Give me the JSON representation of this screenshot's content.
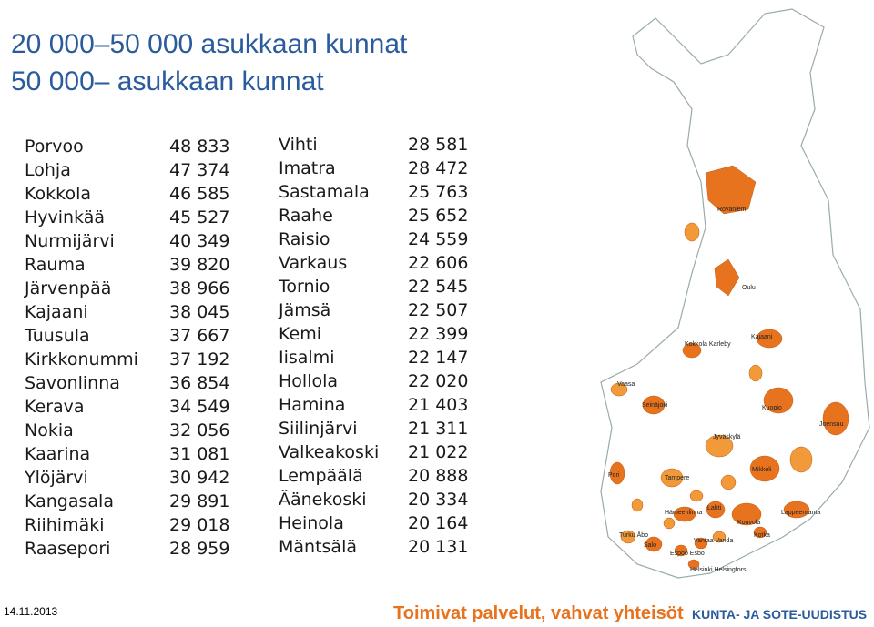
{
  "header": {
    "title_lines": [
      "20 000–50 000 asukkaan kunnat",
      "50 000– asukkaan kunnat"
    ]
  },
  "tables": [
    {
      "rows": [
        [
          "Porvoo",
          "48 833"
        ],
        [
          "Lohja",
          "47 374"
        ],
        [
          "Kokkola",
          "46 585"
        ],
        [
          "Hyvinkää",
          "45 527"
        ],
        [
          "Nurmijärvi",
          "40 349"
        ],
        [
          "Rauma",
          "39 820"
        ],
        [
          "Järvenpää",
          "38 966"
        ],
        [
          "Kajaani",
          "38 045"
        ],
        [
          "Tuusula",
          "37 667"
        ],
        [
          "Kirkkonummi",
          "37 192"
        ],
        [
          "Savonlinna",
          "36 854"
        ],
        [
          "Kerava",
          "34 549"
        ],
        [
          "Nokia",
          "32 056"
        ],
        [
          "Kaarina",
          "31 081"
        ],
        [
          "Ylöjärvi",
          "30 942"
        ],
        [
          "Kangasala",
          "29 891"
        ],
        [
          "Riihimäki",
          "29 018"
        ],
        [
          "Raasepori",
          "28 959"
        ]
      ]
    },
    {
      "rows": [
        [
          "Vihti",
          "28 581"
        ],
        [
          "Imatra",
          "28 472"
        ],
        [
          "Sastamala",
          "25 763"
        ],
        [
          "Raahe",
          "25 652"
        ],
        [
          "Raisio",
          "24 559"
        ],
        [
          "Varkaus",
          "22 606"
        ],
        [
          "Tornio",
          "22 545"
        ],
        [
          "Jämsä",
          "22 507"
        ],
        [
          "Kemi",
          "22 399"
        ],
        [
          "Iisalmi",
          "22 147"
        ],
        [
          "Hollola",
          "22 020"
        ],
        [
          "Hamina",
          "21 403"
        ],
        [
          "Siilinjärvi",
          "21 311"
        ],
        [
          "Valkeakoski",
          "21 022"
        ],
        [
          "Lempäälä",
          "20 888"
        ],
        [
          "Äänekoski",
          "20 334"
        ],
        [
          "Heinola",
          "20 164"
        ],
        [
          "Mäntsälä",
          "20 131"
        ]
      ]
    }
  ],
  "map": {
    "labels": [
      "Rovaniemi",
      "Oulu",
      "Kajaani",
      "Kokkola Karleby",
      "Vaasa",
      "Seinäjoki",
      "Kuopio",
      "Joensuu",
      "Jyväskylä",
      "Pori",
      "Tampere",
      "Hämeenlinna",
      "Mikkeli",
      "Lahti",
      "Kouvola",
      "Lappeenranta",
      "Kotka",
      "Turku Åbo",
      "Salo",
      "Espoo Esbo",
      "Vantaa Vanda",
      "Helsinki Helsingfors"
    ]
  },
  "footer": {
    "date": "14.11.2013",
    "slogan": "Toimivat palvelut, vahvat yhteisöt",
    "brand": "KUNTA- JA SOTE-UUDISTUS"
  }
}
